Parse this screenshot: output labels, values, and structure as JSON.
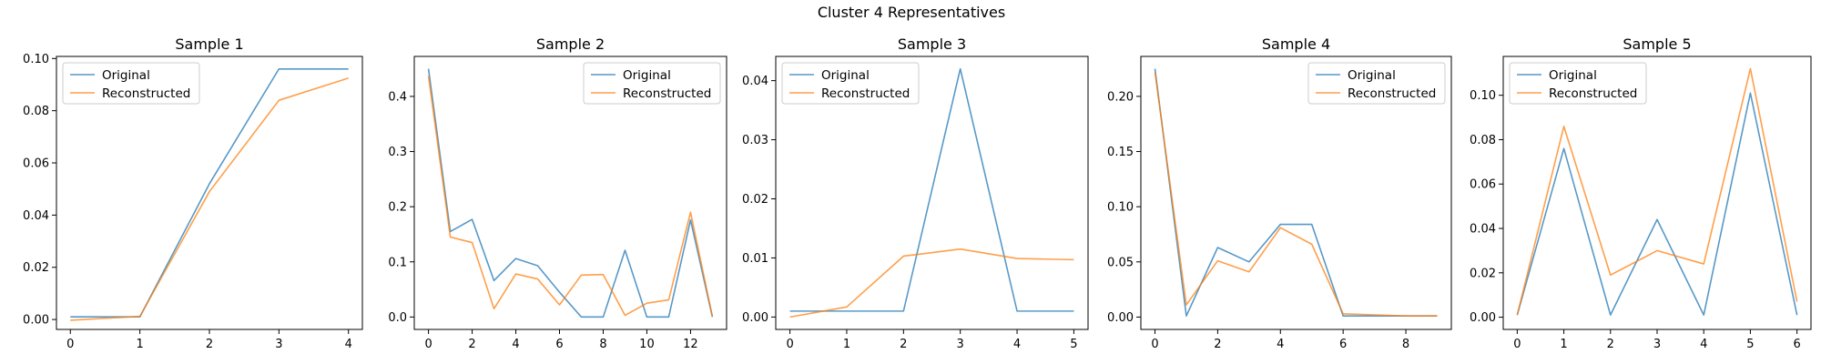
{
  "figure": {
    "suptitle": "Cluster 4 Representatives"
  },
  "colors": {
    "original": "#1f77b4",
    "reconstructed": "#ff7f0e"
  },
  "chart_data": [
    {
      "type": "line",
      "title": "Sample 1",
      "xlabel": "",
      "ylabel": "",
      "x": [
        0,
        1,
        2,
        3,
        4
      ],
      "xlim": [
        -0.2,
        4.2
      ],
      "ylim": [
        -0.0038,
        0.1008
      ],
      "xticks": [
        0,
        1,
        2,
        3,
        4
      ],
      "yticks": [
        0.0,
        0.02,
        0.04,
        0.06,
        0.08,
        0.1
      ],
      "ytick_labels": [
        "0.00",
        "0.02",
        "0.04",
        "0.06",
        "0.08",
        "0.10"
      ],
      "legend": "upper left",
      "series": [
        {
          "name": "Original",
          "values": [
            0.001,
            0.001,
            0.052,
            0.096,
            0.096
          ]
        },
        {
          "name": "Reconstructed",
          "values": [
            -0.0003,
            0.0012,
            0.049,
            0.084,
            0.0925
          ]
        }
      ]
    },
    {
      "type": "line",
      "title": "Sample 2",
      "xlabel": "",
      "ylabel": "",
      "x": [
        0,
        1,
        2,
        3,
        4,
        5,
        6,
        7,
        8,
        9,
        10,
        11,
        12,
        13
      ],
      "xlim": [
        -0.65,
        13.65
      ],
      "ylim": [
        -0.0225,
        0.4725
      ],
      "xticks": [
        0,
        2,
        4,
        6,
        8,
        10,
        12
      ],
      "yticks": [
        0.0,
        0.1,
        0.2,
        0.3,
        0.4
      ],
      "ytick_labels": [
        "0.0",
        "0.1",
        "0.2",
        "0.3",
        "0.4"
      ],
      "legend": "upper right",
      "series": [
        {
          "name": "Original",
          "values": [
            0.45,
            0.155,
            0.177,
            0.066,
            0.106,
            0.093,
            0.045,
            0.0,
            0.0,
            0.121,
            0.0,
            0.0,
            0.176,
            0.0
          ]
        },
        {
          "name": "Reconstructed",
          "values": [
            0.437,
            0.145,
            0.135,
            0.015,
            0.078,
            0.069,
            0.022,
            0.076,
            0.077,
            0.003,
            0.025,
            0.031,
            0.19,
            0.001
          ]
        }
      ]
    },
    {
      "type": "line",
      "title": "Sample 3",
      "xlabel": "",
      "ylabel": "",
      "x": [
        0,
        1,
        2,
        3,
        4,
        5
      ],
      "xlim": [
        -0.25,
        5.25
      ],
      "ylim": [
        -0.0021,
        0.0441
      ],
      "xticks": [
        0,
        1,
        2,
        3,
        4,
        5
      ],
      "yticks": [
        0.0,
        0.01,
        0.02,
        0.03,
        0.04
      ],
      "ytick_labels": [
        "0.00",
        "0.01",
        "0.02",
        "0.03",
        "0.04"
      ],
      "legend": "upper left",
      "series": [
        {
          "name": "Original",
          "values": [
            0.001,
            0.001,
            0.001,
            0.042,
            0.001,
            0.001
          ]
        },
        {
          "name": "Reconstructed",
          "values": [
            0.0,
            0.0017,
            0.0103,
            0.0115,
            0.0099,
            0.0097
          ]
        }
      ]
    },
    {
      "type": "line",
      "title": "Sample 4",
      "xlabel": "",
      "ylabel": "",
      "x": [
        0,
        1,
        2,
        3,
        4,
        5,
        6,
        7,
        8,
        9
      ],
      "xlim": [
        -0.45,
        9.45
      ],
      "ylim": [
        -0.0112,
        0.2362
      ],
      "xticks": [
        0,
        2,
        4,
        6,
        8
      ],
      "yticks": [
        0.0,
        0.05,
        0.1,
        0.15,
        0.2
      ],
      "ytick_labels": [
        "0.00",
        "0.05",
        "0.10",
        "0.15",
        "0.20"
      ],
      "legend": "upper right",
      "series": [
        {
          "name": "Original",
          "values": [
            0.225,
            0.001,
            0.063,
            0.05,
            0.084,
            0.084,
            0.001,
            0.001,
            0.001,
            0.001
          ]
        },
        {
          "name": "Reconstructed",
          "values": [
            0.222,
            0.011,
            0.051,
            0.041,
            0.081,
            0.066,
            0.003,
            0.002,
            0.001,
            0.001
          ]
        }
      ]
    },
    {
      "type": "line",
      "title": "Sample 5",
      "xlabel": "",
      "ylabel": "",
      "x": [
        0,
        1,
        2,
        3,
        4,
        5,
        6
      ],
      "xlim": [
        -0.3,
        6.3
      ],
      "ylim": [
        -0.0055,
        0.1175
      ],
      "xticks": [
        0,
        1,
        2,
        3,
        4,
        5,
        6
      ],
      "yticks": [
        0.0,
        0.02,
        0.04,
        0.06,
        0.08,
        0.1
      ],
      "ytick_labels": [
        "0.00",
        "0.02",
        "0.04",
        "0.06",
        "0.08",
        "0.10"
      ],
      "legend": "upper left",
      "series": [
        {
          "name": "Original",
          "values": [
            0.001,
            0.076,
            0.001,
            0.044,
            0.001,
            0.101,
            0.001
          ]
        },
        {
          "name": "Reconstructed",
          "values": [
            0.001,
            0.086,
            0.019,
            0.03,
            0.024,
            0.112,
            0.007
          ]
        }
      ]
    }
  ]
}
